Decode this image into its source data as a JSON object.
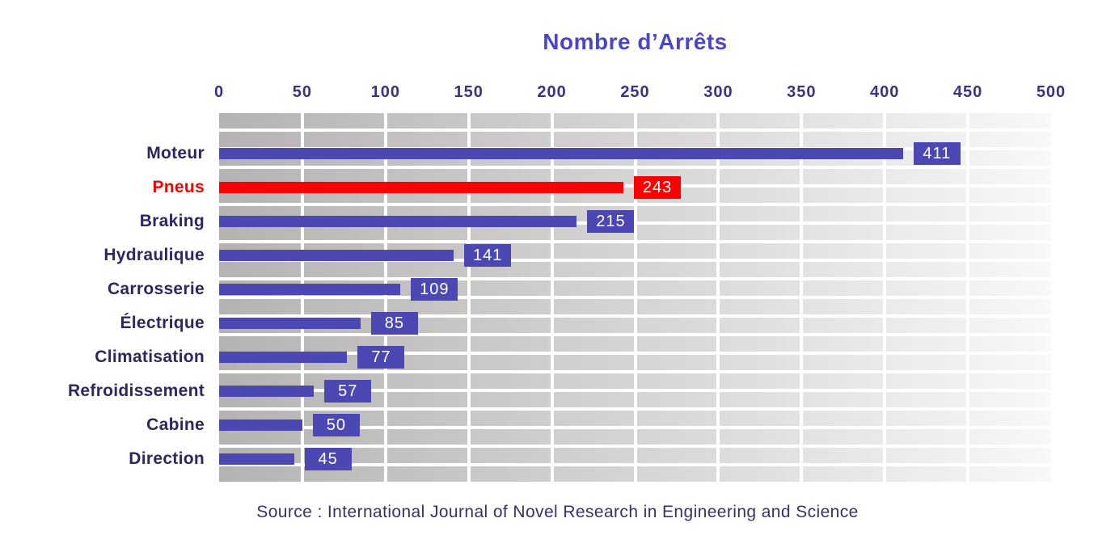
{
  "title": "Nombre d’Arrêts",
  "source": "Source : International Journal of Novel Research in Engineering and Science",
  "colors": {
    "bar": "#4b48b4",
    "highlight": "#fb0000",
    "title_text": "#4a45c9",
    "tick_text": "#3e3184",
    "category_text": "#2d2660",
    "source_text": "#3a3069",
    "plot_gradient_left": "#b5b3b2",
    "plot_gradient_right": "#f8f8f8",
    "gridline": "#ffffff",
    "value_text": "#ffffff"
  },
  "chart_data": {
    "type": "bar",
    "orientation": "horizontal",
    "title": "Nombre d’Arrêts",
    "categories": [
      "Moteur",
      "Pneus",
      "Braking",
      "Hydraulique",
      "Carrosserie",
      "Électrique",
      "Climatisation",
      "Refroidissement",
      "Cabine",
      "Direction"
    ],
    "values": [
      411,
      243,
      215,
      141,
      109,
      85,
      77,
      57,
      50,
      45
    ],
    "highlight_category": "Pneus",
    "value_labels": [
      "411",
      "243",
      "215",
      "141",
      "109",
      "85",
      "77",
      "57",
      "50",
      "45"
    ],
    "axis": {
      "position": "top",
      "min": 0,
      "max": 500,
      "tick_step": 50,
      "ticks": [
        0,
        50,
        100,
        150,
        200,
        250,
        300,
        350,
        400,
        450,
        500
      ]
    },
    "grid": true,
    "legend": false,
    "plot_background": "gray gradient with white stripes"
  }
}
